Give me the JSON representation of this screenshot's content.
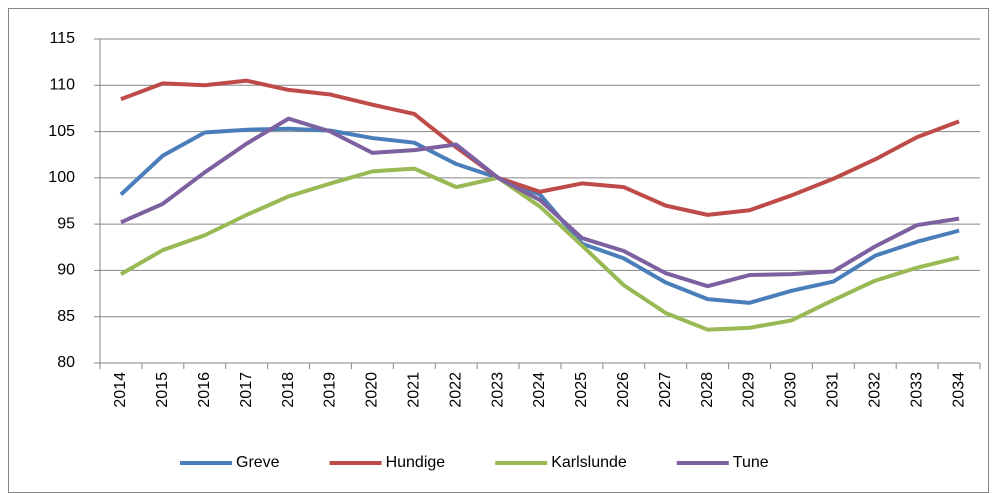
{
  "chart_data": {
    "type": "line",
    "categories": [
      "2014",
      "2015",
      "2016",
      "2017",
      "2018",
      "2019",
      "2020",
      "2021",
      "2022",
      "2023",
      "2024",
      "2025",
      "2026",
      "2027",
      "2028",
      "2029",
      "2030",
      "2031",
      "2032",
      "2033",
      "2034"
    ],
    "series": [
      {
        "name": "Greve",
        "color": "#4a7ebb",
        "values": [
          98.2,
          102.4,
          104.9,
          105.2,
          105.3,
          105.1,
          104.3,
          103.8,
          101.5,
          100,
          98.2,
          92.9,
          91.3,
          88.7,
          86.9,
          86.5,
          87.8,
          88.8,
          91.6,
          93.1,
          94.3
        ]
      },
      {
        "name": "Hundige",
        "color": "#be4b48",
        "values": [
          108.5,
          110.2,
          110.0,
          110.5,
          109.5,
          109.0,
          107.9,
          106.9,
          103.3,
          100,
          98.5,
          99.4,
          99.0,
          97.0,
          96.0,
          96.5,
          98.1,
          99.9,
          102.0,
          104.4,
          106.1
        ]
      },
      {
        "name": "Karlslunde",
        "color": "#98b954",
        "values": [
          89.6,
          92.2,
          93.8,
          96.0,
          98.0,
          99.4,
          100.7,
          101.0,
          99.0,
          100,
          96.9,
          92.7,
          88.4,
          85.4,
          83.6,
          83.8,
          84.6,
          86.8,
          88.9,
          90.3,
          91.4
        ]
      },
      {
        "name": "Tune",
        "color": "#7d60a0",
        "values": [
          95.2,
          97.2,
          100.6,
          103.7,
          106.4,
          105.0,
          102.7,
          103.0,
          103.6,
          100,
          97.6,
          93.5,
          92.1,
          89.7,
          88.3,
          89.5,
          89.6,
          89.9,
          92.6,
          94.9,
          95.6
        ]
      }
    ],
    "ylim": [
      80,
      115
    ],
    "yticks": [
      80,
      85,
      90,
      95,
      100,
      105,
      110,
      115
    ],
    "grid": true,
    "legend": "bottom"
  }
}
